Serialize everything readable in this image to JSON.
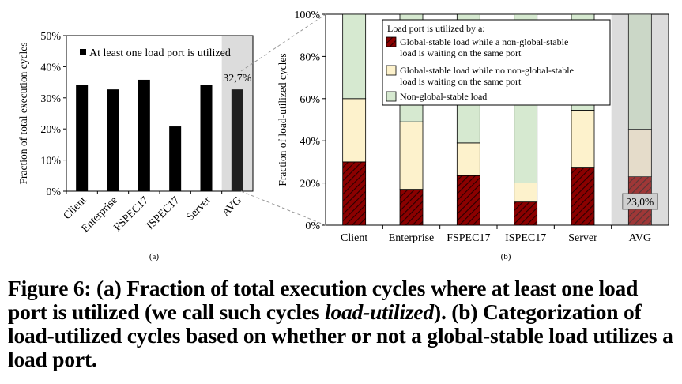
{
  "chart_data": [
    {
      "panel_label": "(a)",
      "type": "bar",
      "categories": [
        "Client",
        "Enterprise",
        "FSPEC17",
        "ISPEC17",
        "Server",
        "AVG"
      ],
      "series": [
        {
          "name": "At least one load port is utilized",
          "values": [
            34.2,
            32.7,
            35.8,
            20.8,
            34.2,
            32.7
          ]
        }
      ],
      "ylabel": "Fraction of total execution cycles",
      "ylim": [
        0,
        50
      ],
      "yticks": [
        "0%",
        "10%",
        "20%",
        "30%",
        "40%",
        "50%"
      ],
      "highlight_category": "AVG",
      "annotation": "32,7%",
      "legend_position": "top-right",
      "grid": false
    },
    {
      "panel_label": "(b)",
      "type": "bar",
      "stacked": true,
      "categories": [
        "Client",
        "Enterprise",
        "FSPEC17",
        "ISPEC17",
        "Server",
        "AVG"
      ],
      "legend_title": "Load port is utilized by a:",
      "series": [
        {
          "name": "Global-stable load while a non-global-stable load is waiting on the same port",
          "values": [
            30,
            17,
            23.5,
            11,
            27.5,
            23
          ]
        },
        {
          "name": "Global-stable load while no non-global-stable load is waiting on the same port",
          "values": [
            30,
            32,
            15.5,
            9,
            27,
            22.5
          ]
        },
        {
          "name": "Non-global-stable load",
          "values": [
            40,
            51,
            61,
            80,
            45.5,
            54.5
          ]
        }
      ],
      "ylabel": "Fraction of load-utilized cycles",
      "ylim": [
        0,
        100
      ],
      "yticks": [
        "0%",
        "20%",
        "40%",
        "60%",
        "80%",
        "100%"
      ],
      "highlight_category": "AVG",
      "annotation": "23,0%",
      "legend_position": "top-right",
      "grid": false
    }
  ],
  "colors": {
    "bar_a": "#000000",
    "seg1": "#8b0000",
    "seg2": "#fdf2cc",
    "seg3": "#d6e9d0",
    "highlight_bg": "#dcdcdc",
    "highlight_bar": "#1f1f1f"
  },
  "caption": {
    "part1": "Figure 6: (a) Fraction of total execution cycles where at least one load port is utilized (we call such cycles ",
    "emph": "load-utilized",
    "part2": "). (b) Categorization of load-utilized cycles based on whether or not a global-stable load utilizes a load port."
  }
}
